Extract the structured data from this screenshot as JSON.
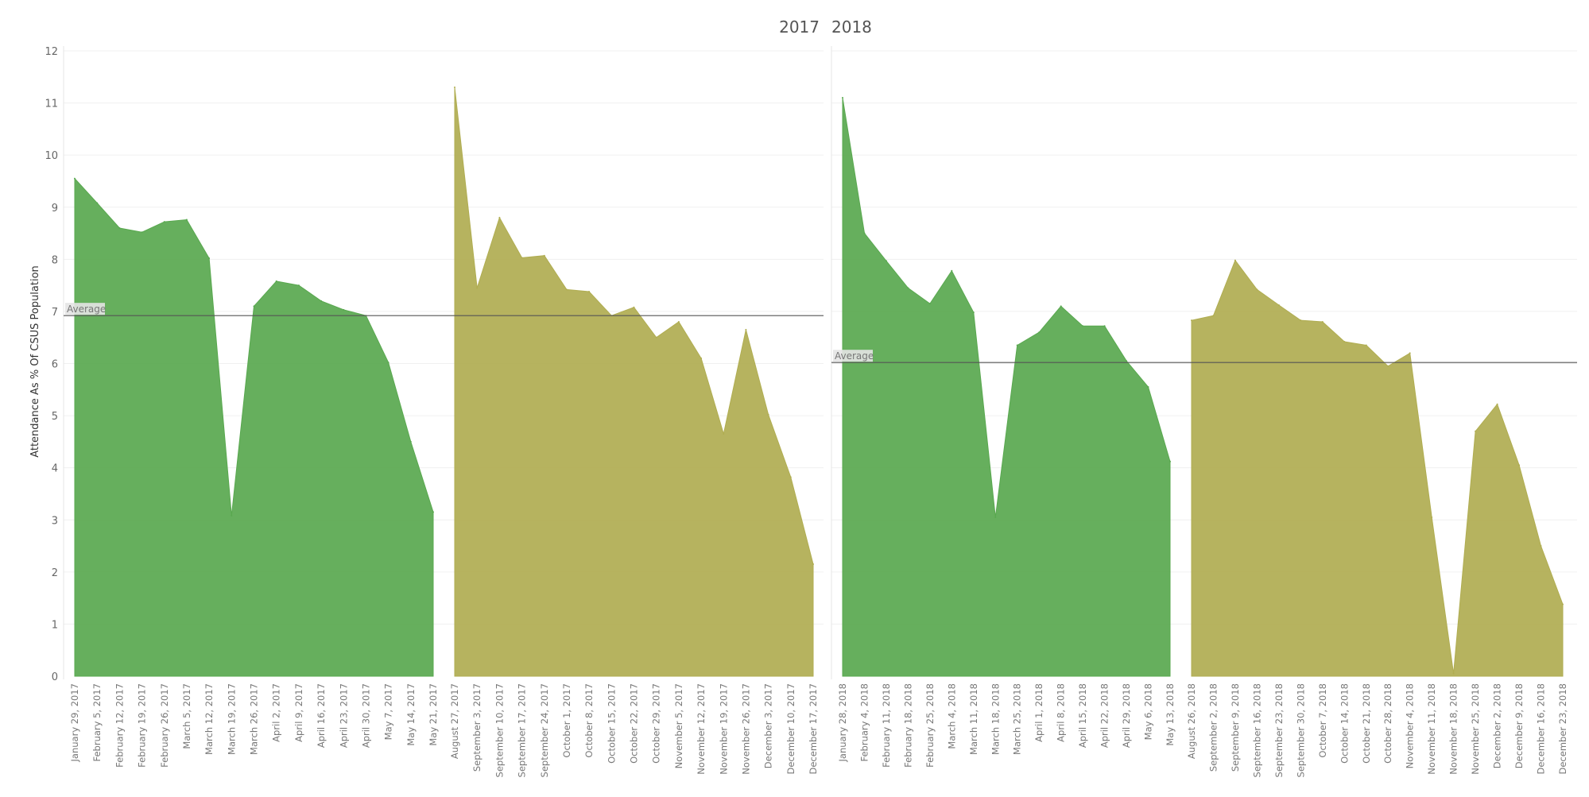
{
  "chart_data": {
    "type": "area",
    "ylabel": "Attendance As % Of CSUS Population",
    "ylim": [
      0,
      12
    ],
    "y_ticks": [
      0,
      1,
      2,
      3,
      4,
      5,
      6,
      7,
      8,
      9,
      10,
      11,
      12
    ],
    "average_label": "Average",
    "colors": {
      "spring": "#59a84f",
      "fall": "#b0ad51",
      "average_line": "#555555"
    },
    "panels": [
      {
        "title": "2017",
        "average": 6.92,
        "series": [
          {
            "color_key": "spring",
            "x": [
              "January 29, 2017",
              "February 5, 2017",
              "February 12, 2017",
              "February 19, 2017",
              "February 26, 2017",
              "March 5, 2017",
              "March 12, 2017",
              "March 19, 2017",
              "March 26, 2017",
              "April 2, 2017",
              "April 9, 2017",
              "April 16, 2017",
              "April 23, 2017",
              "April 30, 2017",
              "May 7, 2017",
              "May 14, 2017",
              "May 21, 2017"
            ],
            "values": [
              9.55,
              9.08,
              8.6,
              8.52,
              8.72,
              8.76,
              8.02,
              3.08,
              7.1,
              7.58,
              7.5,
              7.2,
              7.03,
              6.92,
              6.02,
              4.5,
              3.15
            ]
          },
          {
            "color_key": "fall",
            "x": [
              "August 27, 2017",
              "September 3, 2017",
              "September 10, 2017",
              "September 17, 2017",
              "September 24, 2017",
              "October 1, 2017",
              "October 8, 2017",
              "October 15, 2017",
              "October 22, 2017",
              "October 29, 2017",
              "November 5, 2017",
              "November 12, 2017",
              "November 19, 2017",
              "November 26, 2017",
              "December 3, 2017",
              "December 10, 2017",
              "December 17, 2017"
            ],
            "values": [
              11.3,
              7.45,
              8.8,
              8.03,
              8.07,
              7.42,
              7.38,
              6.92,
              7.08,
              6.5,
              6.8,
              6.1,
              4.65,
              6.65,
              5.02,
              3.82,
              2.15
            ]
          }
        ]
      },
      {
        "title": "2018",
        "average": 6.02,
        "series": [
          {
            "color_key": "spring",
            "x": [
              "January 28, 2018",
              "February 4, 2018",
              "February 11, 2018",
              "February 18, 2018",
              "February 25, 2018",
              "March 4, 2018",
              "March 11, 2018",
              "March 18, 2018",
              "March 25, 2018",
              "April 1, 2018",
              "April 8, 2018",
              "April 15, 2018",
              "April 22, 2018",
              "April 29, 2018",
              "May 6, 2018",
              "May 13, 2018"
            ],
            "values": [
              11.1,
              8.5,
              7.97,
              7.45,
              7.15,
              7.78,
              6.98,
              3.05,
              6.35,
              6.6,
              7.1,
              6.72,
              6.72,
              6.05,
              5.55,
              4.12
            ]
          },
          {
            "color_key": "fall",
            "x": [
              "August 26, 2018",
              "September 2, 2018",
              "September 9, 2018",
              "September 16, 2018",
              "September 23, 2018",
              "September 30, 2018",
              "October 7, 2018",
              "October 14, 2018",
              "October 21, 2018",
              "October 28, 2018",
              "November 4, 2018",
              "November 11, 2018",
              "November 18, 2018",
              "November 25, 2018",
              "December 2, 2018",
              "December 9, 2018",
              "December 16, 2018",
              "December 23, 2018"
            ],
            "values": [
              6.83,
              6.92,
              7.98,
              7.42,
              7.12,
              6.83,
              6.8,
              6.42,
              6.35,
              5.95,
              6.2,
              3.05,
              0.05,
              4.7,
              5.22,
              4.05,
              2.5,
              1.38
            ]
          }
        ]
      }
    ]
  }
}
